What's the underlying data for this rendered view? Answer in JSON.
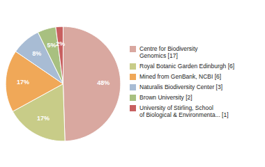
{
  "chart_data": {
    "type": "pie",
    "categories": [
      "Centre for Biodiversity\nGenomics [17]",
      "Royal Botanic Garden Edinburgh [6]",
      "Mined from GenBank, NCBI [6]",
      "Naturalis Biodiversity Center [3]",
      "Brown University [2]",
      "University of Stirling, School\nof Biological & Environmenta... [1]"
    ],
    "values": [
      48,
      17,
      17,
      8,
      5,
      2
    ],
    "value_labels": [
      "48%",
      "17%",
      "17%",
      "8%",
      "5%",
      "2%"
    ],
    "colors": [
      "#d9a8a0",
      "#c8cc88",
      "#f0a858",
      "#a8bcd4",
      "#a8c080",
      "#c86060"
    ],
    "data_labels": true,
    "legend": "right"
  }
}
